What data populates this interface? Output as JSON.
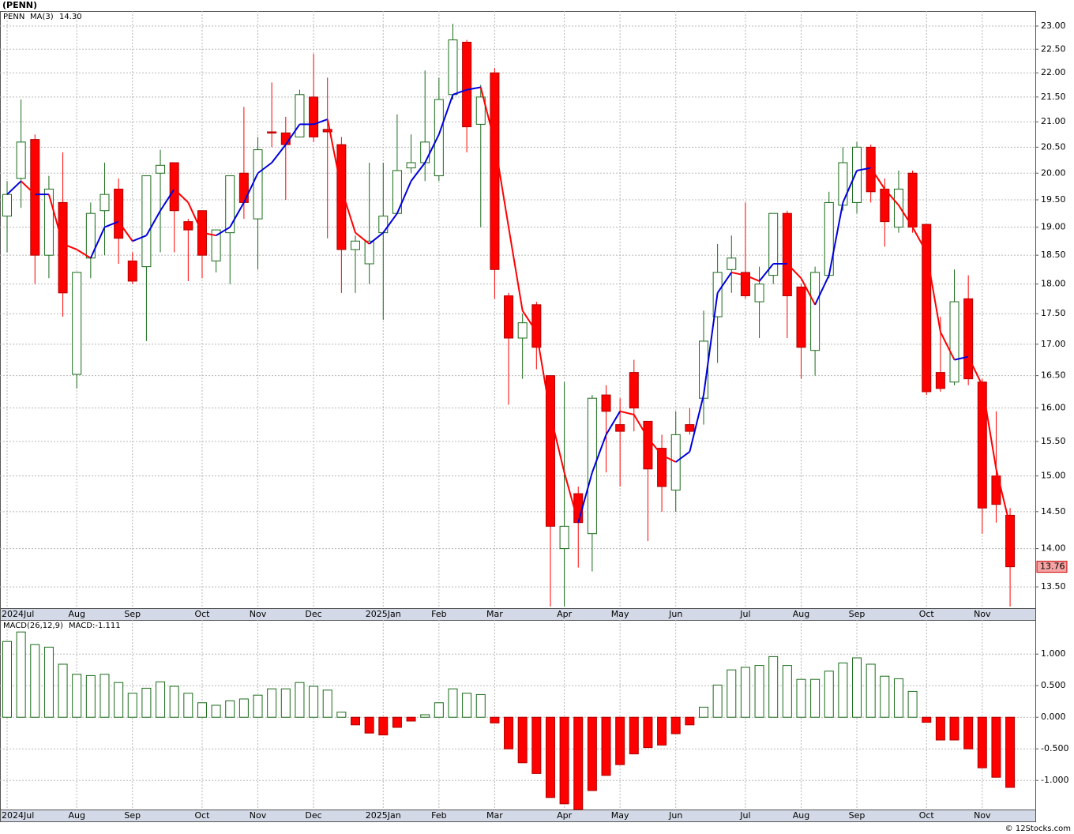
{
  "chart_data": [
    {
      "type": "candlestick",
      "title": "(PENN)",
      "symbol": "PENN",
      "categories": [
        "2024Jul",
        null,
        null,
        null,
        null,
        "Aug",
        null,
        null,
        null,
        "Sep",
        null,
        null,
        null,
        null,
        "Oct",
        null,
        null,
        null,
        "Nov",
        null,
        null,
        null,
        "Dec",
        null,
        null,
        null,
        null,
        "2025Jan",
        null,
        null,
        null,
        "Feb",
        null,
        null,
        null,
        "Mar",
        null,
        null,
        null,
        null,
        "Apr",
        null,
        null,
        null,
        "May",
        null,
        null,
        null,
        "Jun",
        null,
        null,
        null,
        null,
        "Jul",
        null,
        null,
        null,
        "Aug",
        null,
        null,
        null,
        "Sep",
        null,
        null,
        null,
        null,
        "Oct",
        null,
        null,
        null,
        "Nov",
        null,
        null
      ],
      "open": [
        19.2,
        19.9,
        20.65,
        18.5,
        19.45,
        16.52,
        18.45,
        19.3,
        19.7,
        18.4,
        18.3,
        20.0,
        20.2,
        19.1,
        19.3,
        18.4,
        18.9,
        20.0,
        19.15,
        20.8,
        20.78,
        20.7,
        21.5,
        20.85,
        20.55,
        18.6,
        18.35,
        18.9,
        19.25,
        20.1,
        20.2,
        19.95,
        21.55,
        22.65,
        20.95,
        22.0,
        17.8,
        17.1,
        17.65,
        16.5,
        14.0,
        14.75,
        14.2,
        16.2,
        15.75,
        16.55,
        15.8,
        15.4,
        14.8,
        15.75,
        16.15,
        17.45,
        18.25,
        18.2,
        17.7,
        18.15,
        19.25,
        17.95,
        16.9,
        18.15,
        19.4,
        19.45,
        20.5,
        19.7,
        19.0,
        20.0,
        19.05,
        16.55,
        16.4,
        17.75,
        16.4,
        15.0,
        14.45
      ],
      "high": [
        19.85,
        21.45,
        20.75,
        19.95,
        20.4,
        18.2,
        19.45,
        20.2,
        19.9,
        18.55,
        19.95,
        20.45,
        20.2,
        19.15,
        19.3,
        18.95,
        19.95,
        21.3,
        20.7,
        21.8,
        21.1,
        21.65,
        22.4,
        21.9,
        20.7,
        18.85,
        20.2,
        20.2,
        21.15,
        20.75,
        22.05,
        21.9,
        23.05,
        22.7,
        21.75,
        22.1,
        17.85,
        17.5,
        17.7,
        16.5,
        16.4,
        14.85,
        16.2,
        16.35,
        16.15,
        16.75,
        15.8,
        15.6,
        15.95,
        16.0,
        17.55,
        18.7,
        18.85,
        19.45,
        18.3,
        19.25,
        19.3,
        18.0,
        18.3,
        19.65,
        20.5,
        20.6,
        20.55,
        19.9,
        20.05,
        20.05,
        19.05,
        17.45,
        18.25,
        18.15,
        16.45,
        15.95,
        14.55
      ],
      "low": [
        18.55,
        19.35,
        18.0,
        18.1,
        17.45,
        16.3,
        18.1,
        18.5,
        18.35,
        18.0,
        17.05,
        18.55,
        18.55,
        18.05,
        18.1,
        18.2,
        18.0,
        19.15,
        18.25,
        20.5,
        19.5,
        20.75,
        20.6,
        18.8,
        17.85,
        17.85,
        18.0,
        17.4,
        19.25,
        20.0,
        19.85,
        19.85,
        21.45,
        20.4,
        19.0,
        17.75,
        16.05,
        16.45,
        16.6,
        13.25,
        13.25,
        13.75,
        13.7,
        15.05,
        14.85,
        15.65,
        14.1,
        14.5,
        14.5,
        15.6,
        15.75,
        16.7,
        17.85,
        17.75,
        17.1,
        18.0,
        17.1,
        16.45,
        16.5,
        18.1,
        19.3,
        19.25,
        19.45,
        18.65,
        18.9,
        18.9,
        16.2,
        16.25,
        16.35,
        16.35,
        14.2,
        14.35,
        13.25
      ],
      "close": [
        19.6,
        20.6,
        18.5,
        19.7,
        17.85,
        18.2,
        19.25,
        19.6,
        18.8,
        18.05,
        19.95,
        20.15,
        19.3,
        18.95,
        18.5,
        18.95,
        19.95,
        19.45,
        20.45,
        20.78,
        20.55,
        21.55,
        20.7,
        20.8,
        18.6,
        18.75,
        18.75,
        19.2,
        20.05,
        20.2,
        20.6,
        21.45,
        22.7,
        20.9,
        21.5,
        18.25,
        17.1,
        17.35,
        16.95,
        14.3,
        14.3,
        14.35,
        16.15,
        15.95,
        15.65,
        16.0,
        15.1,
        14.85,
        15.6,
        15.65,
        17.05,
        18.2,
        18.45,
        17.8,
        18.0,
        19.25,
        17.8,
        16.95,
        18.2,
        19.45,
        20.2,
        20.5,
        19.65,
        19.1,
        19.7,
        19.0,
        16.25,
        16.3,
        17.7,
        16.45,
        14.55,
        14.6,
        13.76
      ],
      "up_color": "#1a6b1a",
      "down_color": "#ff0000",
      "ma": {
        "name": "MA(3)",
        "value_label": "14.30",
        "up_color": "#0000dd",
        "down_color": "#ff0000",
        "values": [
          19.6,
          19.85,
          19.6,
          19.6,
          18.7,
          18.6,
          18.45,
          19.0,
          19.1,
          18.75,
          18.85,
          19.3,
          19.7,
          19.45,
          18.9,
          18.85,
          19.0,
          19.45,
          20.0,
          20.2,
          20.55,
          20.95,
          20.95,
          21.05,
          19.7,
          18.9,
          18.7,
          18.9,
          19.25,
          19.85,
          20.2,
          20.75,
          21.55,
          21.65,
          21.7,
          20.6,
          19.0,
          17.55,
          17.2,
          15.9,
          15.05,
          14.35,
          15.05,
          15.6,
          15.95,
          15.9,
          15.55,
          15.3,
          15.2,
          15.35,
          16.2,
          17.85,
          18.2,
          18.15,
          18.05,
          18.35,
          18.35,
          18.1,
          17.65,
          18.15,
          19.45,
          20.05,
          20.1,
          19.7,
          19.4,
          19.0,
          18.55,
          17.2,
          16.75,
          16.8,
          16.35,
          15.1,
          14.3
        ]
      },
      "log_scale": true,
      "grid": true,
      "ylim": [
        13.23,
        23.33
      ],
      "yticks": [
        {
          "value": 13.5,
          "label": "13.50"
        },
        {
          "value": 14,
          "label": "14.00"
        },
        {
          "value": 14.5,
          "label": "14.50"
        },
        {
          "value": 15,
          "label": "15.00"
        },
        {
          "value": 15.5,
          "label": "15.50"
        },
        {
          "value": 16,
          "label": "16.00"
        },
        {
          "value": 16.5,
          "label": "16.50"
        },
        {
          "value": 17,
          "label": "17.00"
        },
        {
          "value": 17.5,
          "label": "17.50"
        },
        {
          "value": 18,
          "label": "18.00"
        },
        {
          "value": 18.5,
          "label": "18.50"
        },
        {
          "value": 19,
          "label": "19.00"
        },
        {
          "value": 19.5,
          "label": "19.50"
        },
        {
          "value": 20,
          "label": "20.00"
        },
        {
          "value": 20.5,
          "label": "20.50"
        },
        {
          "value": 21,
          "label": "21.00"
        },
        {
          "value": 21.5,
          "label": "21.50"
        },
        {
          "value": 22,
          "label": "22.00"
        },
        {
          "value": 22.5,
          "label": "22.50"
        },
        {
          "value": 23,
          "label": "23.00"
        }
      ]
    },
    {
      "type": "bar",
      "title": "MACD(26,12,9)",
      "label": "MACD:-1.111",
      "categories": [
        "2024Jul",
        null,
        null,
        null,
        null,
        "Aug",
        null,
        null,
        null,
        "Sep",
        null,
        null,
        null,
        null,
        "Oct",
        null,
        null,
        null,
        "Nov",
        null,
        null,
        null,
        "Dec",
        null,
        null,
        null,
        null,
        "2025Jan",
        null,
        null,
        null,
        "Feb",
        null,
        null,
        null,
        "Mar",
        null,
        null,
        null,
        null,
        "Apr",
        null,
        null,
        null,
        "May",
        null,
        null,
        null,
        "Jun",
        null,
        null,
        null,
        null,
        "Jul",
        null,
        null,
        null,
        "Aug",
        null,
        null,
        null,
        "Sep",
        null,
        null,
        null,
        null,
        "Oct",
        null,
        null,
        null,
        "Nov",
        null,
        null
      ],
      "values": [
        1.2,
        1.35,
        1.15,
        1.11,
        0.84,
        0.68,
        0.66,
        0.68,
        0.55,
        0.38,
        0.46,
        0.56,
        0.49,
        0.38,
        0.23,
        0.19,
        0.26,
        0.29,
        0.35,
        0.45,
        0.45,
        0.55,
        0.49,
        0.43,
        0.08,
        -0.12,
        -0.25,
        -0.28,
        -0.16,
        -0.06,
        0.04,
        0.23,
        0.45,
        0.38,
        0.36,
        -0.09,
        -0.5,
        -0.72,
        -0.89,
        -1.27,
        -1.37,
        -1.46,
        -1.16,
        -0.92,
        -0.75,
        -0.58,
        -0.48,
        -0.44,
        -0.26,
        -0.12,
        0.16,
        0.51,
        0.75,
        0.79,
        0.82,
        0.96,
        0.82,
        0.6,
        0.6,
        0.73,
        0.86,
        0.94,
        0.84,
        0.65,
        0.61,
        0.41,
        -0.08,
        -0.36,
        -0.36,
        -0.5,
        -0.8,
        -0.95,
        -1.11
      ],
      "up_color": "#1a6b1a",
      "down_color": "#ff0000",
      "grid": true,
      "ylim": [
        -1.46,
        1.54
      ],
      "yticks": [
        {
          "value": -1,
          "label": "-1.000"
        },
        {
          "value": -0.5,
          "label": "-0.500"
        },
        {
          "value": 0,
          "label": "0.000"
        },
        {
          "value": 0.5,
          "label": "0.500"
        },
        {
          "value": 1,
          "label": "1.000"
        }
      ]
    }
  ],
  "footer": "© 12Stocks.com"
}
